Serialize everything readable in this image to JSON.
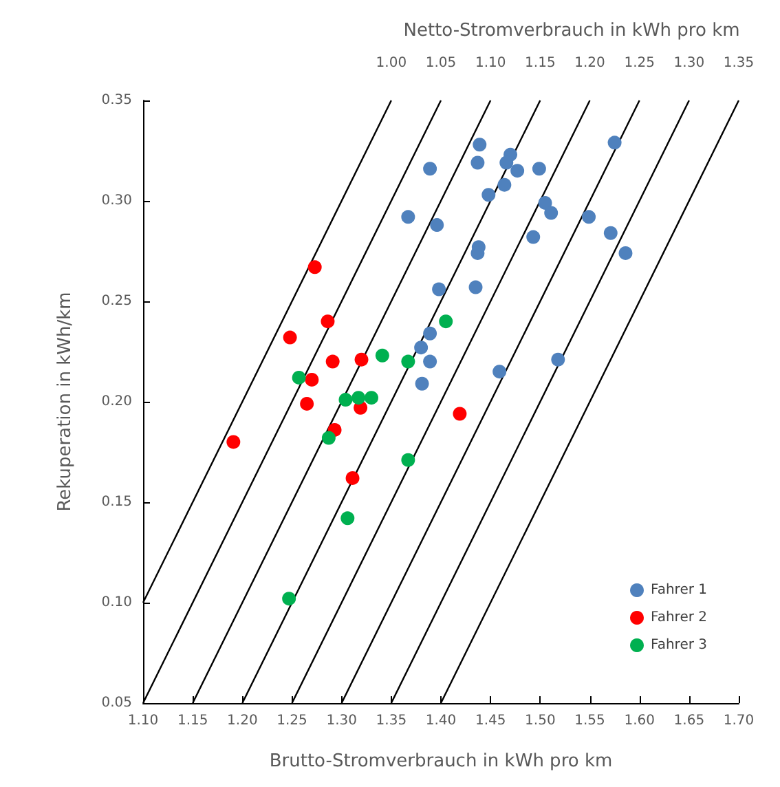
{
  "chart_data": {
    "type": "scatter",
    "xlabel": "Brutto-Stromverbrauch in kWh pro km",
    "ylabel": "Rekuperation in kWh/km",
    "x2label": "Netto-Stromverbrauch in kWh pro km",
    "xlim": [
      1.1,
      1.7
    ],
    "ylim": [
      0.05,
      0.35
    ],
    "x2lim": [
      0.75,
      1.35
    ],
    "xticks": [
      {
        "value": 1.1,
        "label": "1.10"
      },
      {
        "value": 1.15,
        "label": "1.15"
      },
      {
        "value": 1.2,
        "label": "1.20"
      },
      {
        "value": 1.25,
        "label": "1.25"
      },
      {
        "value": 1.3,
        "label": "1.30"
      },
      {
        "value": 1.35,
        "label": "1.35"
      },
      {
        "value": 1.4,
        "label": "1.40"
      },
      {
        "value": 1.45,
        "label": "1.45"
      },
      {
        "value": 1.5,
        "label": "1.50"
      },
      {
        "value": 1.55,
        "label": "1.55"
      },
      {
        "value": 1.6,
        "label": "1.60"
      },
      {
        "value": 1.65,
        "label": "1.65"
      },
      {
        "value": 1.7,
        "label": "1.70"
      }
    ],
    "yticks": [
      {
        "value": 0.05,
        "label": "0.05"
      },
      {
        "value": 0.1,
        "label": "0.10"
      },
      {
        "value": 0.15,
        "label": "0.15"
      },
      {
        "value": 0.2,
        "label": "0.20"
      },
      {
        "value": 0.25,
        "label": "0.25"
      },
      {
        "value": 0.3,
        "label": "0.30"
      },
      {
        "value": 0.35,
        "label": "0.35"
      }
    ],
    "x2ticks": [
      {
        "value": 1.0,
        "label": "1.00"
      },
      {
        "value": 1.05,
        "label": "1.05"
      },
      {
        "value": 1.1,
        "label": "1.10"
      },
      {
        "value": 1.15,
        "label": "1.15"
      },
      {
        "value": 1.2,
        "label": "1.20"
      },
      {
        "value": 1.25,
        "label": "1.25"
      },
      {
        "value": 1.3,
        "label": "1.30"
      },
      {
        "value": 1.35,
        "label": "1.35"
      }
    ],
    "grid": false,
    "legend": "bottom right",
    "marker": "circle",
    "series": [
      {
        "name": "Fahrer 1",
        "color": "#4f81bd",
        "x": [
          1.439,
          1.437,
          1.389,
          1.47,
          1.466,
          1.477,
          1.499,
          1.464,
          1.448,
          1.367,
          1.396,
          1.505,
          1.511,
          1.493,
          1.438,
          1.437,
          1.549,
          1.575,
          1.571,
          1.586,
          1.398,
          1.435,
          1.389,
          1.38,
          1.389,
          1.381,
          1.459,
          1.518
        ],
        "values": [
          0.328,
          0.319,
          0.316,
          0.323,
          0.319,
          0.315,
          0.316,
          0.308,
          0.303,
          0.292,
          0.288,
          0.299,
          0.294,
          0.282,
          0.277,
          0.274,
          0.292,
          0.329,
          0.284,
          0.274,
          0.256,
          0.257,
          0.234,
          0.227,
          0.22,
          0.209,
          0.215,
          0.221
        ]
      },
      {
        "name": "Fahrer 2",
        "color": "#ff0000",
        "x": [
          1.273,
          1.286,
          1.248,
          1.291,
          1.32,
          1.27,
          1.265,
          1.319,
          1.293,
          1.191,
          1.311,
          1.419
        ],
        "values": [
          0.267,
          0.24,
          0.232,
          0.22,
          0.221,
          0.211,
          0.199,
          0.197,
          0.186,
          0.18,
          0.162,
          0.194
        ]
      },
      {
        "name": "Fahrer 3",
        "color": "#00b050",
        "x": [
          1.405,
          1.341,
          1.367,
          1.257,
          1.304,
          1.317,
          1.33,
          1.287,
          1.367,
          1.306,
          1.247
        ],
        "values": [
          0.24,
          0.223,
          0.22,
          0.212,
          0.201,
          0.202,
          0.202,
          0.182,
          0.171,
          0.142,
          0.102
        ]
      },
      {
        "type": "line",
        "marker": "none",
        "color": "#000000",
        "x": [
          1.1,
          1.35
        ],
        "values": [
          0.1,
          0.35
        ]
      },
      {
        "type": "line",
        "marker": "none",
        "color": "#000000",
        "x": [
          1.1,
          1.4
        ],
        "values": [
          0.05,
          0.35
        ]
      },
      {
        "type": "line",
        "marker": "none",
        "color": "#000000",
        "x": [
          1.15,
          1.45
        ],
        "values": [
          0.05,
          0.35
        ]
      },
      {
        "type": "line",
        "marker": "none",
        "color": "#000000",
        "x": [
          1.2,
          1.5
        ],
        "values": [
          0.05,
          0.35
        ]
      },
      {
        "type": "line",
        "marker": "none",
        "color": "#000000",
        "x": [
          1.25,
          1.55
        ],
        "values": [
          0.05,
          0.35
        ]
      },
      {
        "type": "line",
        "marker": "none",
        "color": "#000000",
        "x": [
          1.3,
          1.6
        ],
        "values": [
          0.05,
          0.35
        ]
      },
      {
        "type": "line",
        "marker": "none",
        "color": "#000000",
        "x": [
          1.35,
          1.65
        ],
        "values": [
          0.05,
          0.35
        ]
      },
      {
        "type": "line",
        "marker": "none",
        "color": "#000000",
        "x": [
          1.4,
          1.7
        ],
        "values": [
          0.05,
          0.35
        ]
      }
    ]
  }
}
